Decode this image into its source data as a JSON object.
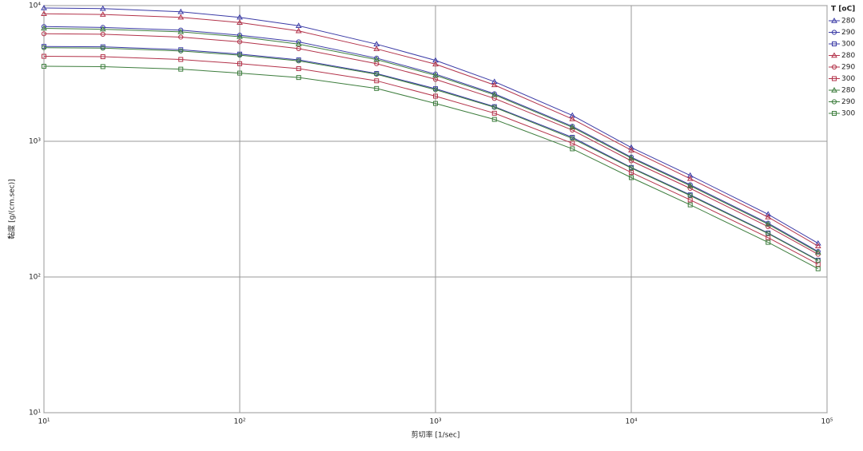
{
  "chart_data": {
    "type": "line",
    "xlabel": "剪切率 [1/sec]",
    "ylabel": "黏度 [g/(cm.sec)]",
    "legend_title": "T [oC]",
    "legend": "top-right",
    "xscale": "log",
    "yscale": "log",
    "grid": true,
    "xlim": [
      10,
      100000
    ],
    "ylim": [
      10,
      10000
    ],
    "xticks": [
      {
        "value": 10,
        "label": "10¹"
      },
      {
        "value": 100,
        "label": "10²"
      },
      {
        "value": 1000,
        "label": "10³"
      },
      {
        "value": 10000,
        "label": "10⁴"
      },
      {
        "value": 100000,
        "label": "10⁵"
      }
    ],
    "yticks": [
      {
        "value": 10,
        "label": "10¹"
      },
      {
        "value": 100,
        "label": "10²"
      },
      {
        "value": 1000,
        "label": "10³"
      },
      {
        "value": 10000,
        "label": "10⁴"
      }
    ],
    "x": [
      10,
      20,
      50,
      100,
      200,
      500,
      1000,
      2000,
      5000,
      10000,
      20000,
      50000,
      90000
    ],
    "series": [
      {
        "name": "280",
        "color": "#3b3ba6",
        "marker": "triangle",
        "values": [
          9600,
          9500,
          9000,
          8200,
          7100,
          5200,
          3950,
          2750,
          1550,
          900,
          560,
          290,
          177
        ]
      },
      {
        "name": "290",
        "color": "#3b3ba6",
        "marker": "circle",
        "values": [
          7000,
          6900,
          6600,
          6050,
          5400,
          4100,
          3130,
          2240,
          1290,
          764,
          478,
          249,
          154
        ]
      },
      {
        "name": "300",
        "color": "#3b3ba6",
        "marker": "square",
        "values": [
          5000,
          4970,
          4730,
          4390,
          3980,
          3160,
          2440,
          1800,
          1070,
          641,
          403,
          211,
          133
        ]
      },
      {
        "name": "280",
        "color": "#b3334a",
        "marker": "triangle",
        "values": [
          8700,
          8600,
          8200,
          7500,
          6500,
          4800,
          3700,
          2600,
          1460,
          860,
          530,
          276,
          169
        ]
      },
      {
        "name": "290",
        "color": "#b3334a",
        "marker": "circle",
        "values": [
          6200,
          6150,
          5860,
          5410,
          4820,
          3730,
          2860,
          2070,
          1210,
          718,
          450,
          235,
          147
        ]
      },
      {
        "name": "300",
        "color": "#b3334a",
        "marker": "square",
        "values": [
          4230,
          4200,
          4010,
          3730,
          3430,
          2790,
          2150,
          1610,
          968,
          589,
          370,
          195,
          124
        ]
      },
      {
        "name": "280",
        "color": "#3d7d3d",
        "marker": "triangle",
        "values": [
          6800,
          6700,
          6400,
          5900,
          5200,
          4000,
          3060,
          2200,
          1270,
          752,
          470,
          245,
          152
        ]
      },
      {
        "name": "290",
        "color": "#3d7d3d",
        "marker": "circle",
        "values": [
          4900,
          4860,
          4630,
          4310,
          3910,
          3120,
          2400,
          1780,
          1050,
          635,
          398,
          209,
          132
        ]
      },
      {
        "name": "300",
        "color": "#3d7d3d",
        "marker": "square",
        "values": [
          3570,
          3550,
          3400,
          3180,
          2950,
          2450,
          1900,
          1450,
          880,
          540,
          340,
          180,
          115
        ]
      }
    ]
  }
}
